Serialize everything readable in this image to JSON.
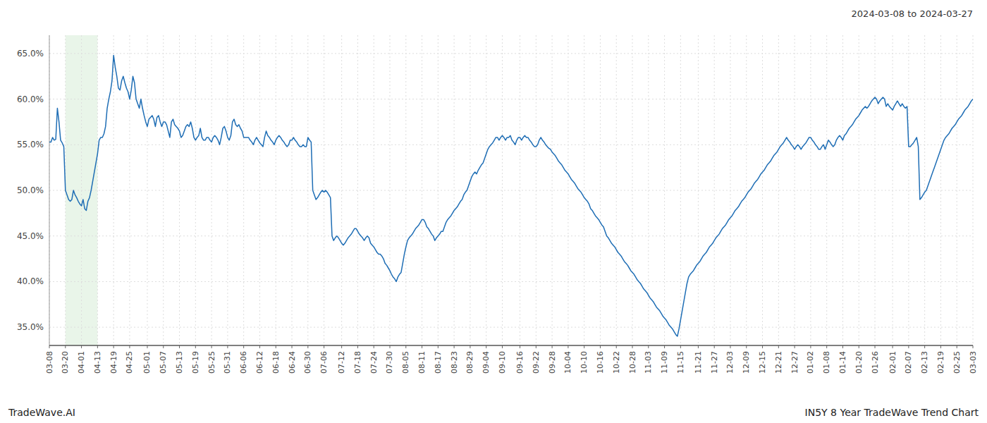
{
  "chart_data": {
    "type": "line",
    "title": "2024-03-08 to 2024-03-27",
    "annotations": [
      "TradeWave.AI",
      "IN5Y 8 Year TradeWave Trend Chart"
    ],
    "color": "#1f6eb5",
    "grid": true,
    "highlight": {
      "from": "03-20",
      "to": "04-13",
      "color": "#d4ecd4"
    },
    "ylim": [
      0.33,
      0.67
    ],
    "yticks": [
      {
        "value": 0.35,
        "label": "35.0%"
      },
      {
        "value": 0.4,
        "label": "40.0%"
      },
      {
        "value": 0.45,
        "label": "45.0%"
      },
      {
        "value": 0.5,
        "label": "50.0%"
      },
      {
        "value": 0.55,
        "label": "55.0%"
      },
      {
        "value": 0.6,
        "label": "60.0%"
      },
      {
        "value": 0.65,
        "label": "65.0%"
      }
    ],
    "categories": [
      "03-08",
      null,
      null,
      null,
      null,
      null,
      null,
      null,
      null,
      null,
      "03-20",
      null,
      null,
      null,
      null,
      null,
      null,
      null,
      null,
      null,
      "04-01",
      null,
      null,
      null,
      null,
      null,
      null,
      null,
      null,
      null,
      "04-13",
      null,
      null,
      null,
      null,
      null,
      null,
      null,
      null,
      null,
      "04-19",
      null,
      null,
      null,
      null,
      null,
      null,
      null,
      null,
      null,
      "04-25",
      null,
      null,
      null,
      null,
      null,
      null,
      null,
      null,
      null,
      null,
      "05-01",
      null,
      null,
      null,
      null,
      null,
      null,
      null,
      null,
      null,
      "05-07",
      null,
      null,
      null,
      null,
      null,
      null,
      null,
      null,
      null,
      "05-13",
      null,
      null,
      null,
      null,
      null,
      null,
      null,
      null,
      null,
      "05-19",
      null,
      null,
      null,
      null,
      null,
      null,
      null,
      null,
      null,
      "05-25",
      null,
      null,
      null,
      null,
      null,
      null,
      null,
      null,
      null,
      "05-31",
      null,
      null,
      null,
      null,
      null,
      null,
      null,
      null,
      null,
      "06-06",
      null,
      null,
      null,
      null,
      null,
      null,
      null,
      null,
      null,
      "06-12",
      null,
      null,
      null,
      null,
      null,
      null,
      null,
      null,
      null,
      "06-18",
      null,
      null,
      null,
      null,
      null,
      null,
      null,
      null,
      null,
      "06-24",
      null,
      null,
      null,
      null,
      null,
      null,
      null,
      null,
      null,
      "06-30",
      null,
      null,
      null,
      null,
      null,
      null,
      null,
      null,
      null,
      "07-06",
      null,
      null,
      null,
      null,
      null,
      null,
      null,
      null,
      null,
      null,
      "07-12",
      null,
      null,
      null,
      null,
      null,
      null,
      null,
      null,
      null,
      "07-18",
      null,
      null,
      null,
      null,
      null,
      null,
      null,
      null,
      null,
      "07-24",
      null,
      null,
      null,
      null,
      null,
      null,
      null,
      null,
      null,
      "07-30",
      null,
      null,
      null,
      null,
      null,
      null,
      null,
      null,
      null,
      "08-05",
      null,
      null,
      null,
      null,
      null,
      null,
      null,
      null,
      null,
      "08-11",
      null,
      null,
      null,
      null,
      null,
      null,
      null,
      null,
      null,
      "08-17",
      null,
      null,
      null,
      null,
      null,
      null,
      null,
      null,
      null,
      "08-23",
      null,
      null,
      null,
      null,
      null,
      null,
      null,
      null,
      null,
      "08-29",
      null,
      null,
      null,
      null,
      null,
      null,
      null,
      null,
      null,
      "09-04",
      null,
      null,
      null,
      null,
      null,
      null,
      null,
      null,
      null,
      "09-10",
      null,
      null,
      null,
      null,
      null,
      null,
      null,
      null,
      null,
      null,
      "09-16",
      null,
      null,
      null,
      null,
      null,
      null,
      null,
      null,
      null,
      "09-22",
      null,
      null,
      null,
      null,
      null,
      null,
      null,
      null,
      null,
      "09-28",
      null,
      null,
      null,
      null,
      null,
      null,
      null,
      null,
      null,
      "10-04",
      null,
      null,
      null,
      null,
      null,
      null,
      null,
      null,
      null,
      "10-10",
      null,
      null,
      null,
      null,
      null,
      null,
      null,
      null,
      null,
      "10-16",
      null,
      null,
      null,
      null,
      null,
      null,
      null,
      null,
      null,
      "10-22",
      null,
      null,
      null,
      null,
      null,
      null,
      null,
      null,
      null,
      "10-28",
      null,
      null,
      null,
      null,
      null,
      null,
      null,
      null,
      null,
      "11-03",
      null,
      null,
      null,
      null,
      null,
      null,
      null,
      null,
      null,
      "11-09",
      null,
      null,
      null,
      null,
      null,
      null,
      null,
      null,
      null,
      "11-15",
      null,
      null,
      null,
      null,
      null,
      null,
      null,
      null,
      null,
      null,
      "11-21",
      null,
      null,
      null,
      null,
      null,
      null,
      null,
      null,
      null,
      "11-27",
      null,
      null,
      null,
      null,
      null,
      null,
      null,
      null,
      null,
      "12-03",
      null,
      null,
      null,
      null,
      null,
      null,
      null,
      null,
      null,
      "12-09",
      null,
      null,
      null,
      null,
      null,
      null,
      null,
      null,
      null,
      "12-15",
      null,
      null,
      null,
      null,
      null,
      null,
      null,
      null,
      null,
      "12-21",
      null,
      null,
      null,
      null,
      null,
      null,
      null,
      null,
      null,
      "12-27",
      null,
      null,
      null,
      null,
      null,
      null,
      null,
      null,
      null,
      "01-02",
      null,
      null,
      null,
      null,
      null,
      null,
      null,
      null,
      null,
      "01-08",
      null,
      null,
      null,
      null,
      null,
      null,
      null,
      null,
      null,
      "01-14",
      null,
      null,
      null,
      null,
      null,
      null,
      null,
      null,
      null,
      "01-20",
      null,
      null,
      null,
      null,
      null,
      null,
      null,
      null,
      null,
      "01-26",
      null,
      null,
      null,
      null,
      null,
      null,
      null,
      null,
      null,
      null,
      "02-01",
      null,
      null,
      null,
      null,
      null,
      null,
      null,
      null,
      null,
      "02-07",
      null,
      null,
      null,
      null,
      null,
      null,
      null,
      null,
      null,
      "02-13",
      null,
      null,
      null,
      null,
      null,
      null,
      null,
      null,
      null,
      "02-19",
      null,
      null,
      null,
      null,
      null,
      null,
      null,
      null,
      null,
      "02-25",
      null,
      null,
      null,
      null,
      null,
      null,
      null,
      null,
      null,
      "03-03"
    ],
    "values": [
      0.553,
      0.553,
      0.558,
      0.555,
      0.556,
      0.59,
      0.575,
      0.555,
      0.552,
      0.548,
      0.5,
      0.495,
      0.49,
      0.488,
      0.49,
      0.5,
      0.495,
      0.492,
      0.488,
      0.485,
      0.483,
      0.49,
      0.48,
      0.478,
      0.488,
      0.492,
      0.5,
      0.51,
      0.52,
      0.53,
      0.54,
      0.555,
      0.558,
      0.558,
      0.562,
      0.57,
      0.59,
      0.6,
      0.608,
      0.62,
      0.648,
      0.635,
      0.625,
      0.612,
      0.61,
      0.62,
      0.625,
      0.618,
      0.612,
      0.608,
      0.6,
      0.61,
      0.625,
      0.618,
      0.6,
      0.595,
      0.59,
      0.6,
      0.59,
      0.582,
      0.575,
      0.57,
      0.578,
      0.58,
      0.582,
      0.578,
      0.57,
      0.58,
      0.582,
      0.575,
      0.57,
      0.575,
      0.575,
      0.572,
      0.565,
      0.558,
      0.575,
      0.578,
      0.572,
      0.57,
      0.568,
      0.565,
      0.558,
      0.56,
      0.565,
      0.57,
      0.572,
      0.57,
      0.575,
      0.568,
      0.558,
      0.555,
      0.558,
      0.56,
      0.568,
      0.558,
      0.555,
      0.555,
      0.558,
      0.558,
      0.555,
      0.553,
      0.558,
      0.56,
      0.558,
      0.555,
      0.55,
      0.558,
      0.568,
      0.57,
      0.565,
      0.558,
      0.555,
      0.56,
      0.575,
      0.578,
      0.572,
      0.57,
      0.572,
      0.568,
      0.565,
      0.558,
      0.558,
      0.558,
      0.558,
      0.555,
      0.553,
      0.55,
      0.555,
      0.558,
      0.555,
      0.552,
      0.55,
      0.548,
      0.558,
      0.565,
      0.56,
      0.558,
      0.555,
      0.553,
      0.55,
      0.555,
      0.558,
      0.56,
      0.558,
      0.555,
      0.553,
      0.55,
      0.548,
      0.55,
      0.555,
      0.555,
      0.558,
      0.555,
      0.553,
      0.55,
      0.548,
      0.548,
      0.55,
      0.548,
      0.548,
      0.558,
      0.555,
      0.553,
      0.5,
      0.495,
      0.49,
      0.492,
      0.495,
      0.498,
      0.5,
      0.498,
      0.5,
      0.498,
      0.495,
      0.492,
      0.45,
      0.445,
      0.448,
      0.45,
      0.448,
      0.445,
      0.442,
      0.44,
      0.442,
      0.445,
      0.448,
      0.45,
      0.452,
      0.455,
      0.458,
      0.458,
      0.455,
      0.452,
      0.45,
      0.448,
      0.445,
      0.448,
      0.45,
      0.448,
      0.442,
      0.44,
      0.438,
      0.435,
      0.432,
      0.43,
      0.43,
      0.428,
      0.425,
      0.42,
      0.418,
      0.415,
      0.412,
      0.408,
      0.405,
      0.403,
      0.4,
      0.405,
      0.408,
      0.41,
      0.42,
      0.43,
      0.438,
      0.445,
      0.448,
      0.45,
      0.452,
      0.455,
      0.458,
      0.46,
      0.462,
      0.465,
      0.468,
      0.468,
      0.465,
      0.46,
      0.458,
      0.455,
      0.452,
      0.45,
      0.445,
      0.448,
      0.45,
      0.452,
      0.455,
      0.455,
      0.46,
      0.465,
      0.468,
      0.47,
      0.472,
      0.475,
      0.478,
      0.48,
      0.482,
      0.485,
      0.488,
      0.49,
      0.495,
      0.498,
      0.5,
      0.505,
      0.51,
      0.515,
      0.518,
      0.52,
      0.518,
      0.522,
      0.525,
      0.528,
      0.53,
      0.535,
      0.54,
      0.545,
      0.548,
      0.55,
      0.552,
      0.555,
      0.558,
      0.558,
      0.555,
      0.558,
      0.56,
      0.558,
      0.555,
      0.558,
      0.558,
      0.56,
      0.555,
      0.553,
      0.55,
      0.555,
      0.558,
      0.558,
      0.555,
      0.558,
      0.56,
      0.558,
      0.558,
      0.555,
      0.553,
      0.55,
      0.548,
      0.548,
      0.55,
      0.555,
      0.558,
      0.555,
      0.553,
      0.55,
      0.548,
      0.546,
      0.545,
      0.542,
      0.54,
      0.538,
      0.535,
      0.532,
      0.53,
      0.528,
      0.525,
      0.522,
      0.52,
      0.518,
      0.515,
      0.512,
      0.51,
      0.508,
      0.505,
      0.502,
      0.5,
      0.498,
      0.495,
      0.492,
      0.49,
      0.488,
      0.485,
      0.48,
      0.478,
      0.475,
      0.472,
      0.47,
      0.468,
      0.465,
      0.462,
      0.46,
      0.455,
      0.45,
      0.448,
      0.445,
      0.442,
      0.44,
      0.438,
      0.435,
      0.432,
      0.43,
      0.428,
      0.425,
      0.422,
      0.42,
      0.418,
      0.415,
      0.412,
      0.41,
      0.408,
      0.405,
      0.402,
      0.4,
      0.398,
      0.395,
      0.392,
      0.39,
      0.388,
      0.385,
      0.382,
      0.38,
      0.378,
      0.375,
      0.372,
      0.37,
      0.368,
      0.365,
      0.362,
      0.36,
      0.358,
      0.355,
      0.352,
      0.35,
      0.348,
      0.345,
      0.342,
      0.34,
      0.348,
      0.358,
      0.368,
      0.378,
      0.388,
      0.398,
      0.405,
      0.408,
      0.41,
      0.412,
      0.415,
      0.418,
      0.42,
      0.422,
      0.425,
      0.428,
      0.43,
      0.432,
      0.435,
      0.438,
      0.44,
      0.442,
      0.445,
      0.448,
      0.45,
      0.452,
      0.455,
      0.458,
      0.46,
      0.462,
      0.465,
      0.468,
      0.47,
      0.472,
      0.475,
      0.478,
      0.48,
      0.482,
      0.485,
      0.488,
      0.49,
      0.492,
      0.495,
      0.498,
      0.5,
      0.502,
      0.505,
      0.508,
      0.51,
      0.512,
      0.515,
      0.518,
      0.52,
      0.522,
      0.525,
      0.528,
      0.53,
      0.532,
      0.535,
      0.538,
      0.54,
      0.542,
      0.545,
      0.548,
      0.55,
      0.552,
      0.555,
      0.558,
      0.555,
      0.553,
      0.55,
      0.548,
      0.545,
      0.548,
      0.55,
      0.548,
      0.545,
      0.548,
      0.55,
      0.552,
      0.555,
      0.558,
      0.558,
      0.555,
      0.553,
      0.55,
      0.548,
      0.545,
      0.545,
      0.548,
      0.55,
      0.545,
      0.55,
      0.555,
      0.553,
      0.55,
      0.548,
      0.55,
      0.555,
      0.558,
      0.56,
      0.558,
      0.555,
      0.56,
      0.562,
      0.565,
      0.568,
      0.57,
      0.572,
      0.575,
      0.578,
      0.58,
      0.582,
      0.585,
      0.588,
      0.59,
      0.592,
      0.59,
      0.592,
      0.595,
      0.598,
      0.6,
      0.602,
      0.6,
      0.595,
      0.598,
      0.6,
      0.602,
      0.6,
      0.592,
      0.595,
      0.592,
      0.59,
      0.588,
      0.592,
      0.595,
      0.598,
      0.595,
      0.592,
      0.595,
      0.592,
      0.59,
      0.592,
      0.548,
      0.548,
      0.55,
      0.552,
      0.555,
      0.558,
      0.548,
      0.49,
      0.492,
      0.495,
      0.498,
      0.5,
      0.505,
      0.51,
      0.515,
      0.52,
      0.525,
      0.53,
      0.535,
      0.54,
      0.545,
      0.55,
      0.555,
      0.558,
      0.56,
      0.562,
      0.565,
      0.568,
      0.57,
      0.572,
      0.575,
      0.578,
      0.58,
      0.582,
      0.585,
      0.588,
      0.59,
      0.592,
      0.595,
      0.598,
      0.6
    ]
  }
}
